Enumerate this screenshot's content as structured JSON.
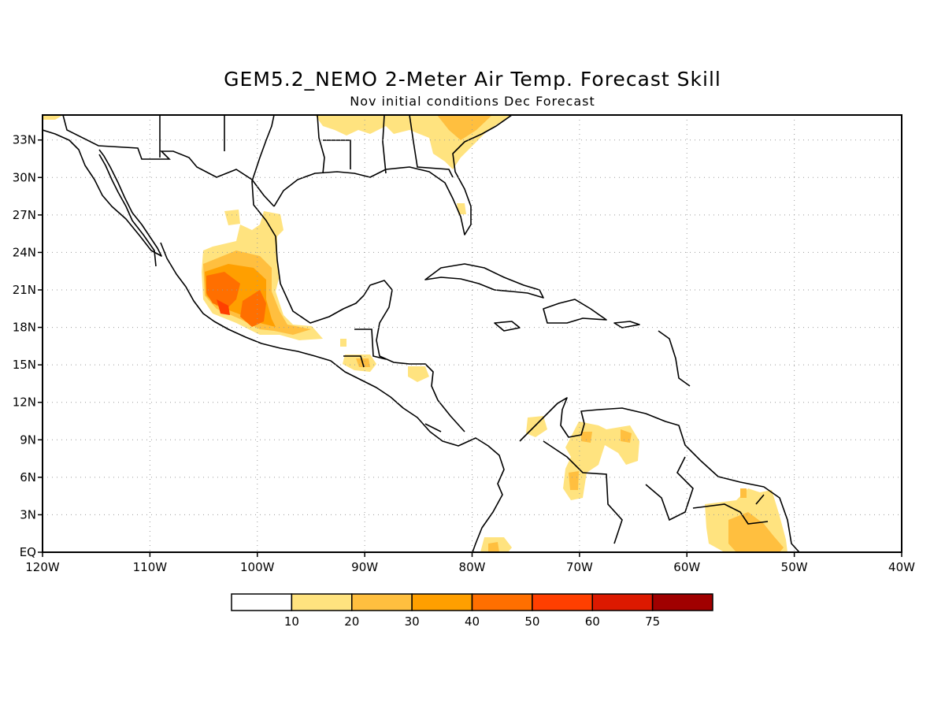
{
  "title": "GEM5.2_NEMO 2-Meter Air Temp. Forecast Skill",
  "subtitle": "Nov initial conditions  Dec Forecast",
  "map": {
    "lon_ticks": [
      "120W",
      "110W",
      "100W",
      "90W",
      "80W",
      "70W",
      "60W",
      "50W",
      "40W"
    ],
    "lat_ticks": [
      "EQ",
      "3N",
      "6N",
      "9N",
      "12N",
      "15N",
      "18N",
      "21N",
      "24N",
      "27N",
      "30N",
      "33N"
    ],
    "lon_range": [
      -120,
      -40
    ],
    "lat_range": [
      0,
      35
    ],
    "grid": "dotted"
  },
  "legend": {
    "labels": [
      "10",
      "20",
      "30",
      "40",
      "50",
      "60",
      "75"
    ],
    "colors": [
      "#ffffff",
      "#ffe37f",
      "#ffbf3f",
      "#ff9f00",
      "#ff6f00",
      "#ff3f00",
      "#dc1900",
      "#a00000"
    ]
  }
}
